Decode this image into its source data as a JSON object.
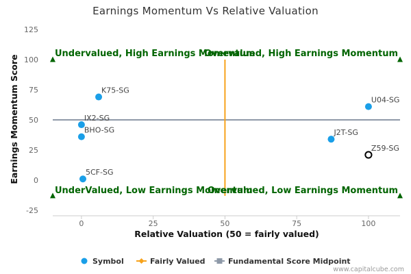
{
  "chart_data": {
    "type": "scatter",
    "title": "Earnings Momentum Vs Relative Valuation",
    "xlabel": "Relative Valuation (50 = fairly valued)",
    "ylabel": "Earnings Momentum Score",
    "xlim": [
      -10,
      111
    ],
    "ylim": [
      -25,
      125
    ],
    "xticks": [
      0,
      25,
      50,
      75,
      100
    ],
    "yticks": [
      -25,
      0,
      25,
      50,
      75,
      100,
      125
    ],
    "grid": false,
    "legend_position": "bottom",
    "points": [
      {
        "label": "K75-SG",
        "x": 6,
        "y": 69,
        "style": "filled"
      },
      {
        "label": "IX2-SG",
        "x": 0,
        "y": 46,
        "style": "filled"
      },
      {
        "label": "BHO-SG",
        "x": 0,
        "y": 36,
        "style": "filled"
      },
      {
        "label": "5CF-SG",
        "x": 0.5,
        "y": 1,
        "style": "filled"
      },
      {
        "label": "U04-SG",
        "x": 100,
        "y": 61,
        "style": "filled"
      },
      {
        "label": "J2T-SG",
        "x": 87,
        "y": 34,
        "style": "filled"
      },
      {
        "label": "Z59-SG",
        "x": 100,
        "y": 21,
        "style": "hollow"
      }
    ],
    "fairly_valued_x": 50,
    "fairly_valued_y_range": [
      -13,
      100
    ],
    "midpoint_y": 50,
    "quadrant_labels": [
      {
        "text": "Undervalued, High Earnings Momentum",
        "corner": "top-left"
      },
      {
        "text": "Overvalued, High Earnings Momentum",
        "corner": "top-right"
      },
      {
        "text": "UnderValued, Low Earnings Momentum",
        "corner": "bottom-left"
      },
      {
        "text": "Overvalued, Low Earnings Momentum",
        "corner": "bottom-right"
      }
    ],
    "legend": [
      {
        "label": "Symbol",
        "marker": "circle"
      },
      {
        "label": "Fairly Valued",
        "marker": "diamond-line"
      },
      {
        "label": "Fundamental Score Midpoint",
        "marker": "square-line"
      }
    ]
  },
  "credit": "www.capitalcube.com",
  "colors": {
    "point": "#1a9fe8",
    "fairly_valued": "#f7a21b",
    "midpoint": "#8e99a8",
    "quadrant_text": "#006400",
    "triangle": "#006400",
    "axis": "#cccccc"
  }
}
